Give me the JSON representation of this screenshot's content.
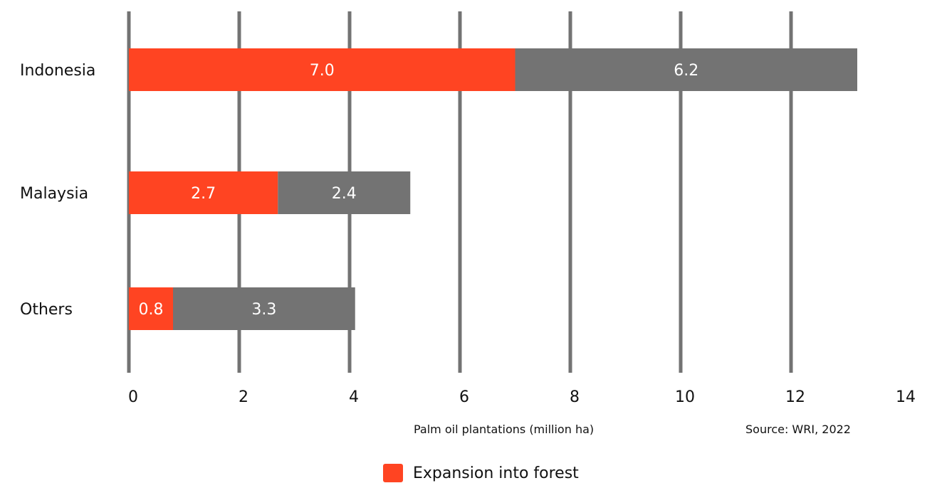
{
  "chart_data": {
    "type": "bar",
    "orientation": "horizontal",
    "stacked": true,
    "categories": [
      "Indonesia",
      "Malaysia",
      "Others"
    ],
    "series": [
      {
        "name": "Expansion into forest",
        "values": [
          7.0,
          2.7,
          0.8
        ],
        "color": "#ff4422"
      },
      {
        "values": [
          6.2,
          2.4,
          3.3
        ],
        "color": "#737373"
      }
    ],
    "data_labels": [
      [
        "7.0",
        "2.7",
        "0.8"
      ],
      [
        "6.2",
        "2.4",
        "3.3"
      ]
    ],
    "xlabel": "Palm oil plantations (million ha)",
    "xlim": [
      0,
      14
    ],
    "x_ticks": [
      0,
      2,
      4,
      6,
      8,
      10,
      12,
      14
    ],
    "tick_labels": [
      "0",
      "2",
      "4",
      "6",
      "8",
      "10",
      "12",
      "14"
    ],
    "grid": true,
    "grid_color": "#737373",
    "legend": {
      "label": "Expansion into forest",
      "placement": "bottom-center"
    },
    "source": "Source: WRI, 2022"
  }
}
